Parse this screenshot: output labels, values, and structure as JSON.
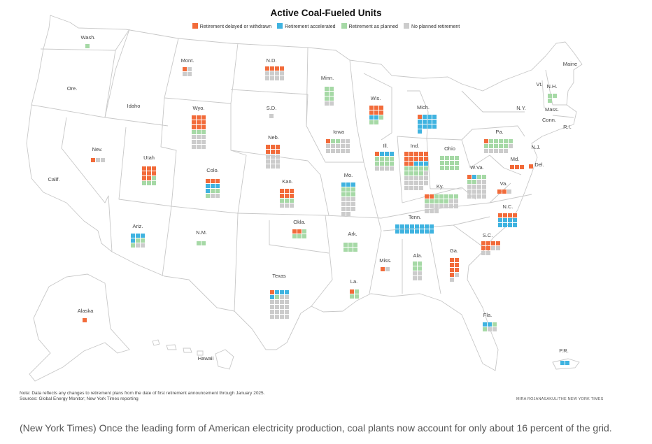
{
  "title": "Active Coal-Fueled Units",
  "colors": {
    "delayed": "#f26b3a",
    "accelerated": "#3fb3e0",
    "planned": "#a6d9a6",
    "none": "#cccccc"
  },
  "legend": [
    {
      "key": "delayed",
      "label": "Retirement delayed or withdrawn"
    },
    {
      "key": "accelerated",
      "label": "Retirement accelerated"
    },
    {
      "key": "planned",
      "label": "Retirement as planned"
    },
    {
      "key": "none",
      "label": "No planned retirement"
    }
  ],
  "note_line1": "Note: Data reflects any changes to retirement plans from the date of first retirement announcement through January 2025.",
  "note_line2": "Sources: Global Energy Monitor; New York Times reporting",
  "credit": "MIRA ROJANASAKUL/THE NEW YORK TIMES",
  "caption": "(New York Times) Once the leading form of American electricity production, coal plants now account for only about 16 percent of the grid.",
  "map_labels": [
    "Ore.",
    "Idaho",
    "Calif.",
    "Maine",
    "Vt.",
    "Mass.",
    "Conn.",
    "R.I.",
    "N.J.",
    "N.Y.",
    "Hawaii"
  ],
  "chart_data": {
    "type": "waffle map",
    "unit_scheme": "one square per active coal-fueled unit",
    "states": [
      {
        "name": "Wash.",
        "delayed": 0,
        "accelerated": 0,
        "planned": 1,
        "none": 0
      },
      {
        "name": "Mont.",
        "delayed": 1,
        "accelerated": 0,
        "planned": 0,
        "none": 3
      },
      {
        "name": "N.D.",
        "delayed": 4,
        "accelerated": 0,
        "planned": 0,
        "none": 8
      },
      {
        "name": "Minn.",
        "delayed": 0,
        "accelerated": 0,
        "planned": 6,
        "none": 2
      },
      {
        "name": "Wis.",
        "delayed": 6,
        "accelerated": 2,
        "planned": 3,
        "none": 0
      },
      {
        "name": "Mich.",
        "delayed": 1,
        "accelerated": 12,
        "planned": 0,
        "none": 0
      },
      {
        "name": "Nev.",
        "delayed": 1,
        "accelerated": 0,
        "planned": 0,
        "none": 2
      },
      {
        "name": "Wyo.",
        "delayed": 9,
        "accelerated": 0,
        "planned": 3,
        "none": 9
      },
      {
        "name": "S.D.",
        "delayed": 0,
        "accelerated": 0,
        "planned": 0,
        "none": 1
      },
      {
        "name": "Iowa",
        "delayed": 1,
        "accelerated": 0,
        "planned": 2,
        "none": 12
      },
      {
        "name": "Ill.",
        "delayed": 1,
        "accelerated": 3,
        "planned": 8,
        "none": 4
      },
      {
        "name": "Ind.",
        "delayed": 12,
        "accelerated": 3,
        "planned": 9,
        "none": 15
      },
      {
        "name": "Ohio",
        "delayed": 0,
        "accelerated": 0,
        "planned": 12,
        "none": 0
      },
      {
        "name": "Pa.",
        "delayed": 1,
        "accelerated": 0,
        "planned": 10,
        "none": 6
      },
      {
        "name": "N.H.",
        "delayed": 0,
        "accelerated": 0,
        "planned": 3,
        "none": 0
      },
      {
        "name": "Utah",
        "delayed": 8,
        "accelerated": 0,
        "planned": 4,
        "none": 0
      },
      {
        "name": "Neb.",
        "delayed": 6,
        "accelerated": 0,
        "planned": 0,
        "none": 9
      },
      {
        "name": "Colo.",
        "delayed": 3,
        "accelerated": 4,
        "planned": 3,
        "none": 2
      },
      {
        "name": "Kan.",
        "delayed": 6,
        "accelerated": 0,
        "planned": 3,
        "none": 3
      },
      {
        "name": "Mo.",
        "delayed": 0,
        "accelerated": 3,
        "planned": 6,
        "none": 11
      },
      {
        "name": "Ky.",
        "delayed": 2,
        "accelerated": 0,
        "planned": 10,
        "none": 12
      },
      {
        "name": "W.Va.",
        "delayed": 1,
        "accelerated": 1,
        "planned": 4,
        "none": 14
      },
      {
        "name": "Md.",
        "delayed": 3,
        "accelerated": 0,
        "planned": 0,
        "none": 0
      },
      {
        "name": "Del.",
        "delayed": 1,
        "accelerated": 0,
        "planned": 0,
        "none": 0
      },
      {
        "name": "Va.",
        "delayed": 2,
        "accelerated": 0,
        "planned": 0,
        "none": 1
      },
      {
        "name": "Ariz.",
        "delayed": 0,
        "accelerated": 4,
        "planned": 3,
        "none": 2
      },
      {
        "name": "N.M.",
        "delayed": 0,
        "accelerated": 0,
        "planned": 2,
        "none": 0
      },
      {
        "name": "Okla.",
        "delayed": 2,
        "accelerated": 0,
        "planned": 4,
        "none": 0
      },
      {
        "name": "Ark.",
        "delayed": 0,
        "accelerated": 0,
        "planned": 6,
        "none": 0
      },
      {
        "name": "Tenn.",
        "delayed": 0,
        "accelerated": 16,
        "planned": 0,
        "none": 0
      },
      {
        "name": "N.C.",
        "delayed": 4,
        "accelerated": 8,
        "planned": 0,
        "none": 0
      },
      {
        "name": "S.C.",
        "delayed": 6,
        "accelerated": 0,
        "planned": 0,
        "none": 4
      },
      {
        "name": "Miss.",
        "delayed": 1,
        "accelerated": 0,
        "planned": 0,
        "none": 1
      },
      {
        "name": "Ala.",
        "delayed": 0,
        "accelerated": 0,
        "planned": 4,
        "none": 4
      },
      {
        "name": "Ga.",
        "delayed": 7,
        "accelerated": 0,
        "planned": 0,
        "none": 2
      },
      {
        "name": "Texas",
        "delayed": 1,
        "accelerated": 4,
        "planned": 1,
        "none": 18
      },
      {
        "name": "La.",
        "delayed": 1,
        "accelerated": 0,
        "planned": 3,
        "none": 0
      },
      {
        "name": "Alaska",
        "delayed": 1,
        "accelerated": 0,
        "planned": 0,
        "none": 0
      },
      {
        "name": "Fla.",
        "delayed": 0,
        "accelerated": 2,
        "planned": 2,
        "none": 2
      },
      {
        "name": "P.R.",
        "delayed": 0,
        "accelerated": 2,
        "planned": 0,
        "none": 0
      }
    ]
  }
}
